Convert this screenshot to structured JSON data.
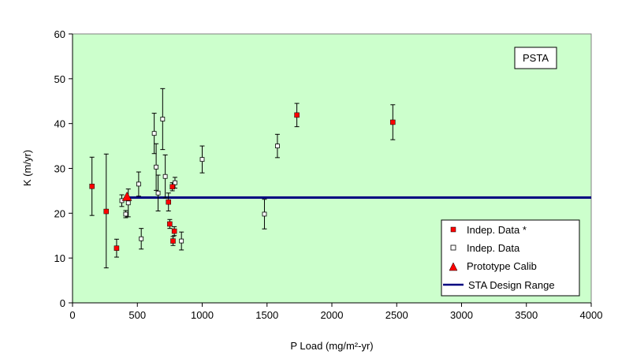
{
  "chart_data": {
    "type": "scatter",
    "xlabel": "P Load (mg/m²-yr)",
    "ylabel": "K (m/yr)",
    "xlim": [
      0,
      4000
    ],
    "ylim": [
      0,
      60
    ],
    "x_ticks": [
      "0",
      "500",
      "1000",
      "1500",
      "2000",
      "2500",
      "3000",
      "3500",
      "4000"
    ],
    "y_ticks": [
      "0",
      "10",
      "20",
      "30",
      "40",
      "50",
      "60"
    ],
    "grid": false,
    "legend_position": "bottom-right",
    "annotation": "PSTA",
    "colors": {
      "plot_background": "#ccffcc",
      "red_marker": "#ff0000",
      "design_line": "#000080"
    },
    "series": [
      {
        "name": "Indep. Data *",
        "marker": "filled-square",
        "color": "#ff0000",
        "points": [
          {
            "x": 150,
            "y": 26.0,
            "lo": 19.5,
            "hi": 32.5
          },
          {
            "x": 260,
            "y": 20.4,
            "lo": 7.8,
            "hi": 33.2
          },
          {
            "x": 340,
            "y": 12.2,
            "lo": 10.2,
            "hi": 14.2
          },
          {
            "x": 740,
            "y": 22.5,
            "lo": 20.5,
            "hi": 24.5
          },
          {
            "x": 750,
            "y": 17.6,
            "lo": 16.6,
            "hi": 18.6
          },
          {
            "x": 770,
            "y": 25.9,
            "lo": 25.0,
            "hi": 26.8
          },
          {
            "x": 775,
            "y": 13.8,
            "lo": 12.8,
            "hi": 14.8
          },
          {
            "x": 785,
            "y": 16.0,
            "lo": 15.0,
            "hi": 17.0
          },
          {
            "x": 1730,
            "y": 41.9,
            "lo": 39.3,
            "hi": 44.5
          },
          {
            "x": 2470,
            "y": 40.3,
            "lo": 36.4,
            "hi": 44.2
          }
        ]
      },
      {
        "name": "Indep. Data",
        "marker": "open-square",
        "color": "#000000",
        "points": [
          {
            "x": 380,
            "y": 22.8,
            "lo": 21.5,
            "hi": 24.1
          },
          {
            "x": 410,
            "y": 19.8,
            "lo": 19.0,
            "hi": 20.6
          },
          {
            "x": 430,
            "y": 22.3,
            "lo": 19.2,
            "hi": 25.4
          },
          {
            "x": 510,
            "y": 26.5,
            "lo": 23.8,
            "hi": 29.2
          },
          {
            "x": 530,
            "y": 14.3,
            "lo": 12.0,
            "hi": 16.6
          },
          {
            "x": 630,
            "y": 37.8,
            "lo": 33.3,
            "hi": 42.3
          },
          {
            "x": 645,
            "y": 30.3,
            "lo": 25.1,
            "hi": 35.5
          },
          {
            "x": 660,
            "y": 24.5,
            "lo": 20.5,
            "hi": 28.5
          },
          {
            "x": 695,
            "y": 41.0,
            "lo": 34.2,
            "hi": 47.8
          },
          {
            "x": 715,
            "y": 28.2,
            "lo": 23.4,
            "hi": 33.0
          },
          {
            "x": 790,
            "y": 26.8,
            "lo": 25.6,
            "hi": 28.0
          },
          {
            "x": 840,
            "y": 13.8,
            "lo": 11.8,
            "hi": 15.8
          },
          {
            "x": 1000,
            "y": 32.0,
            "lo": 29.0,
            "hi": 35.0
          },
          {
            "x": 1480,
            "y": 19.8,
            "lo": 16.5,
            "hi": 23.1
          },
          {
            "x": 1580,
            "y": 35.0,
            "lo": 32.4,
            "hi": 37.6
          }
        ]
      },
      {
        "name": "Prototype Calib",
        "marker": "filled-triangle",
        "color": "#ff0000",
        "points": [
          {
            "x": 420,
            "y": 23.5
          }
        ]
      },
      {
        "name": "STA Design Range",
        "marker": "line",
        "color": "#000080",
        "line": {
          "x_start": 430,
          "x_end": 4000,
          "y": 23.5
        }
      }
    ]
  }
}
